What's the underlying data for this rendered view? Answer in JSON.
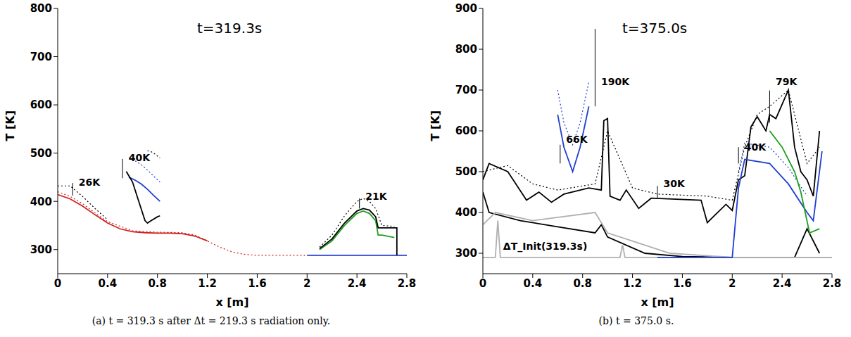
{
  "chart_data": [
    {
      "type": "line",
      "caption": "(a) t = 319.3 s after Δt = 219.3 s radiation only.",
      "time_label": "t=319.3s",
      "x_label": "x [m]",
      "y_label": "T [K]",
      "xlim": [
        0,
        2.8
      ],
      "xticks": [
        0,
        0.4,
        0.8,
        1.2,
        1.6,
        2,
        2.4,
        2.8
      ],
      "ylim": [
        250,
        800
      ],
      "yticks": [
        300,
        400,
        500,
        600,
        700,
        800
      ],
      "grid": false,
      "series": [
        {
          "color": "#d02020",
          "line_style": "solid",
          "x": [
            0,
            0.1,
            0.2,
            0.3,
            0.4,
            0.5,
            0.6,
            0.7,
            0.8,
            0.9,
            1.0,
            1.1,
            1.2
          ],
          "values": [
            414,
            405,
            390,
            372,
            355,
            343,
            337,
            335,
            334,
            334,
            333,
            328,
            318
          ]
        },
        {
          "color": "#d02020",
          "line_style": "dotted",
          "x": [
            0,
            0.1,
            0.2,
            0.3,
            0.4,
            0.6,
            0.8,
            1.0,
            1.1,
            1.2,
            1.3,
            1.4,
            1.5,
            1.6,
            1.8,
            2.0
          ],
          "values": [
            420,
            410,
            395,
            376,
            358,
            339,
            336,
            335,
            330,
            318,
            305,
            295,
            290,
            288,
            288,
            288
          ]
        },
        {
          "color": "#000000",
          "line_style": "dotted",
          "x": [
            0,
            0.1,
            0.2,
            0.3,
            0.4
          ],
          "values": [
            432,
            432,
            410,
            385,
            362
          ]
        },
        {
          "color": "#1f3fd0",
          "line_style": "solid",
          "x": [
            2.0,
            2.2,
            2.4,
            2.6,
            2.8
          ],
          "values": [
            288,
            288,
            288,
            288,
            288
          ]
        },
        {
          "color": "#1f3fd0",
          "line_style": "solid",
          "x": [
            0.57,
            0.62,
            0.67,
            0.72,
            0.77,
            0.82
          ],
          "values": [
            450,
            444,
            436,
            425,
            412,
            400
          ]
        },
        {
          "color": "#1f3fd0",
          "line_style": "dotted",
          "x": [
            0.57,
            0.62,
            0.67,
            0.72,
            0.77,
            0.82
          ],
          "values": [
            490,
            484,
            476,
            465,
            452,
            440
          ]
        },
        {
          "color": "#000000",
          "line_style": "solid",
          "x": [
            0.55,
            0.6,
            0.65,
            0.7,
            0.72,
            0.75,
            0.8,
            0.82
          ],
          "values": [
            462,
            440,
            400,
            360,
            355,
            360,
            368,
            370
          ]
        },
        {
          "color": "#000000",
          "line_style": "dotted",
          "x": [
            0.72,
            0.75,
            0.78,
            0.82
          ],
          "values": [
            505,
            503,
            498,
            490
          ]
        },
        {
          "color": "#1aa01a",
          "line_style": "solid",
          "x": [
            2.1,
            2.2,
            2.3,
            2.4,
            2.45,
            2.5,
            2.55,
            2.57,
            2.6,
            2.7
          ],
          "values": [
            300,
            318,
            350,
            375,
            380,
            375,
            360,
            330,
            330,
            325
          ]
        },
        {
          "color": "#000000",
          "line_style": "solid",
          "x": [
            2.1,
            2.2,
            2.3,
            2.4,
            2.45,
            2.5,
            2.55,
            2.57,
            2.6,
            2.7,
            2.72,
            2.72
          ],
          "values": [
            302,
            322,
            355,
            380,
            385,
            382,
            368,
            345,
            345,
            345,
            345,
            288
          ]
        },
        {
          "color": "#000000",
          "line_style": "dotted",
          "x": [
            2.1,
            2.2,
            2.3,
            2.4,
            2.45,
            2.5,
            2.55,
            2.6,
            2.7
          ],
          "values": [
            305,
            330,
            370,
            400,
            406,
            400,
            385,
            350,
            348
          ]
        }
      ],
      "annotations": [
        {
          "text": "26K",
          "x": 0.12,
          "y": 440,
          "arrow": [
            412,
            438
          ]
        },
        {
          "text": "40K",
          "x": 0.52,
          "y": 490,
          "arrow": [
            448,
            488
          ]
        },
        {
          "text": "21K",
          "x": 2.42,
          "y": 410,
          "arrow": [
            385,
            406
          ]
        }
      ]
    },
    {
      "type": "line",
      "caption": "(b) t = 375.0 s.",
      "time_label": "t=375.0s",
      "x_label": "x [m]",
      "y_label": "T [K]",
      "xlim": [
        0,
        2.8
      ],
      "xticks": [
        0,
        0.4,
        0.8,
        1.2,
        1.6,
        2,
        2.4,
        2.8
      ],
      "ylim": [
        250,
        900
      ],
      "yticks": [
        300,
        400,
        500,
        600,
        700,
        800,
        900
      ],
      "grid": false,
      "series": [
        {
          "color": "#000000",
          "line_style": "solid",
          "x": [
            0,
            0.05,
            0.2,
            0.35,
            0.45,
            0.55,
            0.65,
            0.85,
            0.95,
            0.97,
            1.0,
            1.02,
            1.1,
            1.15,
            1.25,
            1.35,
            1.75,
            1.8,
            1.95,
            2.0,
            2.05,
            2.1,
            2.15,
            2.2,
            2.27,
            2.3,
            2.35,
            2.45,
            2.5,
            2.55,
            2.6,
            2.65,
            2.7
          ],
          "values": [
            480,
            520,
            500,
            430,
            450,
            425,
            445,
            460,
            455,
            625,
            630,
            440,
            430,
            455,
            410,
            435,
            430,
            375,
            420,
            405,
            480,
            490,
            610,
            635,
            600,
            640,
            630,
            700,
            560,
            500,
            480,
            440,
            600
          ]
        },
        {
          "color": "#000000",
          "line_style": "dotted",
          "x": [
            0,
            0.2,
            0.4,
            0.6,
            0.9,
            1.0,
            1.2,
            1.4,
            1.8,
            2.0,
            2.1,
            2.2,
            2.3,
            2.45,
            2.6,
            2.7
          ],
          "values": [
            500,
            515,
            470,
            455,
            470,
            600,
            460,
            445,
            440,
            430,
            560,
            640,
            660,
            700,
            520,
            560
          ]
        },
        {
          "color": "#000000",
          "line_style": "solid",
          "x": [
            0,
            0.05,
            0.3,
            0.6,
            0.9,
            0.95,
            1.0,
            1.3,
            1.6,
            2.0,
            2.5,
            2.6,
            2.7
          ],
          "values": [
            450,
            400,
            380,
            365,
            350,
            370,
            340,
            300,
            292,
            290,
            290,
            360,
            300
          ]
        },
        {
          "color": "#b0b0b0",
          "line_style": "solid",
          "x": [
            0,
            0.1,
            0.4,
            0.9,
            1.0,
            1.2,
            1.5,
            2.0,
            2.8
          ],
          "values": [
            370,
            400,
            380,
            400,
            350,
            330,
            300,
            290,
            290
          ]
        },
        {
          "color": "#b0b0b0",
          "line_style": "solid",
          "x": [
            0,
            0.1,
            0.12,
            0.14,
            0.6,
            1.1,
            1.12,
            1.14,
            2.0,
            2.8
          ],
          "values": [
            290,
            290,
            380,
            290,
            290,
            290,
            320,
            290,
            290,
            290
          ]
        },
        {
          "color": "#1f3fd0",
          "line_style": "solid",
          "x": [
            0.6,
            0.65,
            0.72,
            0.78,
            0.85
          ],
          "values": [
            640,
            560,
            500,
            560,
            660
          ]
        },
        {
          "color": "#1f3fd0",
          "line_style": "dotted",
          "x": [
            0.6,
            0.65,
            0.72,
            0.78,
            0.85
          ],
          "values": [
            700,
            620,
            566,
            620,
            720
          ]
        },
        {
          "color": "#1f3fd0",
          "line_style": "solid",
          "x": [
            1.4,
            2.0,
            2.05,
            2.1,
            2.3,
            2.45,
            2.6,
            2.65,
            2.72
          ],
          "values": [
            290,
            290,
            460,
            530,
            520,
            470,
            400,
            380,
            550
          ]
        },
        {
          "color": "#1f3fd0",
          "line_style": "dotted",
          "x": [
            2.05,
            2.1,
            2.3,
            2.45,
            2.6
          ],
          "values": [
            500,
            570,
            560,
            510,
            440
          ]
        },
        {
          "color": "#1aa01a",
          "line_style": "solid",
          "x": [
            2.3,
            2.4,
            2.5,
            2.55,
            2.62,
            2.7
          ],
          "values": [
            600,
            560,
            500,
            450,
            350,
            360
          ]
        }
      ],
      "annotations": [
        {
          "text": "66K",
          "x": 0.62,
          "y": 580,
          "arrow": [
            520,
            566
          ]
        },
        {
          "text": "190K",
          "x": 0.9,
          "y": 720,
          "arrow": [
            660,
            850
          ]
        },
        {
          "text": "30K",
          "x": 1.4,
          "y": 470,
          "arrow": [
            435,
            465
          ]
        },
        {
          "text": "40K",
          "x": 2.05,
          "y": 560,
          "arrow": [
            520,
            560
          ]
        },
        {
          "text": "79K",
          "x": 2.3,
          "y": 720,
          "arrow": [
            620,
            699
          ]
        },
        {
          "text": "ΔT_Init(319.3s)",
          "x": 0.5,
          "y": 300
        }
      ]
    }
  ]
}
